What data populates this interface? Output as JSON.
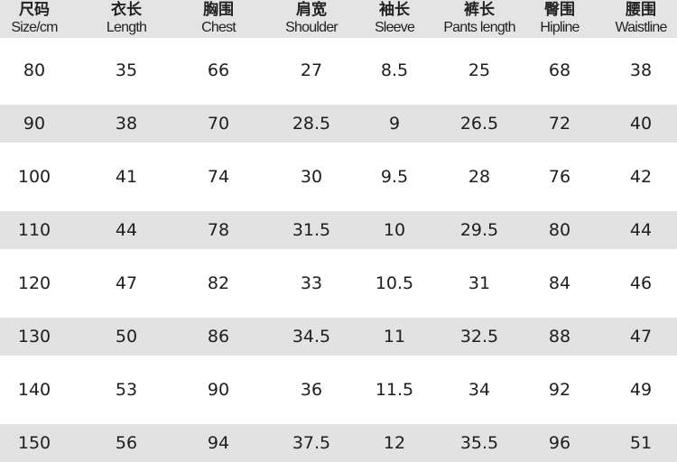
{
  "colors": {
    "header_bg": "#e4e4e4",
    "stripe_bg": "#e2e2e2",
    "text": "#1e1e1e"
  },
  "headers": [
    {
      "zh": "尺码",
      "en": "Size/cm"
    },
    {
      "zh": "衣长",
      "en": "Length"
    },
    {
      "zh": "胸围",
      "en": "Chest"
    },
    {
      "zh": "肩宽",
      "en": "Shoulder"
    },
    {
      "zh": "袖长",
      "en": "Sleeve"
    },
    {
      "zh": "裤长",
      "en": "Pants length"
    },
    {
      "zh": "臀围",
      "en": "Hipline"
    },
    {
      "zh": "腰围",
      "en": "Waistline"
    }
  ],
  "rows": [
    [
      "80",
      "35",
      "66",
      "27",
      "8.5",
      "25",
      "68",
      "38"
    ],
    [
      "90",
      "38",
      "70",
      "28.5",
      "9",
      "26.5",
      "72",
      "40"
    ],
    [
      "100",
      "41",
      "74",
      "30",
      "9.5",
      "28",
      "76",
      "42"
    ],
    [
      "110",
      "44",
      "78",
      "31.5",
      "10",
      "29.5",
      "80",
      "44"
    ],
    [
      "120",
      "47",
      "82",
      "33",
      "10.5",
      "31",
      "84",
      "46"
    ],
    [
      "130",
      "50",
      "86",
      "34.5",
      "11",
      "32.5",
      "88",
      "47"
    ],
    [
      "140",
      "53",
      "90",
      "36",
      "11.5",
      "34",
      "92",
      "49"
    ],
    [
      "150",
      "56",
      "94",
      "37.5",
      "12",
      "35.5",
      "96",
      "51"
    ]
  ]
}
